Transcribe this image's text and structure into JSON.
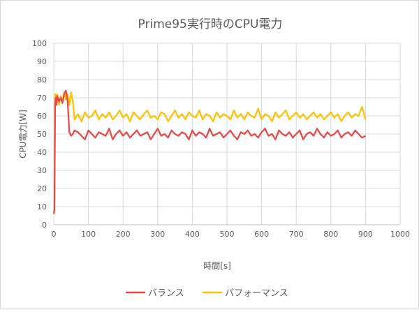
{
  "chart_data": {
    "type": "line",
    "title": "Prime95実行時のCPU電力",
    "xlabel": "時間[s]",
    "ylabel": "CPU電力[W]",
    "xlim": [
      0,
      1000
    ],
    "ylim": [
      0,
      100
    ],
    "xticks": [
      0,
      100,
      200,
      300,
      400,
      500,
      600,
      700,
      800,
      900,
      1000
    ],
    "yticks": [
      0,
      10,
      20,
      30,
      40,
      50,
      60,
      70,
      80,
      90,
      100
    ],
    "grid": true,
    "legend": "bottom",
    "x": [
      0,
      2,
      4,
      6,
      8,
      10,
      15,
      20,
      25,
      30,
      35,
      40,
      45,
      50,
      55,
      60,
      70,
      80,
      90,
      100,
      110,
      120,
      130,
      140,
      150,
      160,
      170,
      180,
      190,
      200,
      210,
      220,
      230,
      240,
      250,
      260,
      270,
      280,
      290,
      300,
      310,
      320,
      330,
      340,
      350,
      360,
      370,
      380,
      390,
      400,
      410,
      420,
      430,
      440,
      450,
      460,
      470,
      480,
      490,
      500,
      510,
      520,
      530,
      540,
      550,
      560,
      570,
      580,
      590,
      600,
      610,
      620,
      630,
      640,
      650,
      660,
      670,
      680,
      690,
      700,
      710,
      720,
      730,
      740,
      750,
      760,
      770,
      780,
      790,
      800,
      810,
      820,
      830,
      840,
      850,
      860,
      870,
      880,
      890,
      900
    ],
    "series": [
      {
        "name": "バランス",
        "color": "#E84545",
        "values": [
          6,
          8,
          68,
          70,
          66,
          71,
          68,
          70,
          67,
          72,
          74,
          68,
          51,
          49,
          50,
          52,
          51,
          49,
          47,
          52,
          50,
          48,
          51,
          50,
          49,
          53,
          47,
          50,
          52,
          49,
          51,
          48,
          50,
          52,
          49,
          50,
          51,
          47,
          50,
          53,
          49,
          50,
          48,
          52,
          50,
          49,
          51,
          50,
          47,
          52,
          49,
          51,
          50,
          48,
          53,
          49,
          50,
          51,
          48,
          50,
          52,
          49,
          47,
          51,
          50,
          52,
          49,
          50,
          48,
          51,
          53,
          49,
          50,
          47,
          52,
          50,
          49,
          51,
          48,
          50,
          52,
          47,
          50,
          51,
          49,
          53,
          50,
          48,
          51,
          49,
          50,
          52,
          48,
          50,
          51,
          49,
          52,
          50,
          48,
          49
        ]
      },
      {
        "name": "パフォーマンス",
        "color": "#FFC000",
        "values": [
          7,
          9,
          72,
          71,
          68,
          72,
          66,
          71,
          68,
          73,
          69,
          72,
          66,
          73,
          68,
          58,
          61,
          57,
          62,
          59,
          60,
          63,
          58,
          61,
          59,
          62,
          58,
          60,
          63,
          59,
          61,
          57,
          62,
          60,
          58,
          61,
          63,
          59,
          60,
          58,
          62,
          61,
          57,
          60,
          63,
          59,
          61,
          58,
          62,
          60,
          59,
          63,
          58,
          61,
          60,
          57,
          62,
          59,
          61,
          60,
          58,
          63,
          59,
          61,
          58,
          62,
          60,
          59,
          64,
          58,
          61,
          60,
          57,
          62,
          59,
          61,
          63,
          58,
          60,
          62,
          59,
          61,
          58,
          60,
          62,
          59,
          61,
          58,
          60,
          62,
          59,
          61,
          57,
          60,
          62,
          59,
          61,
          60,
          65,
          58
        ]
      }
    ]
  }
}
